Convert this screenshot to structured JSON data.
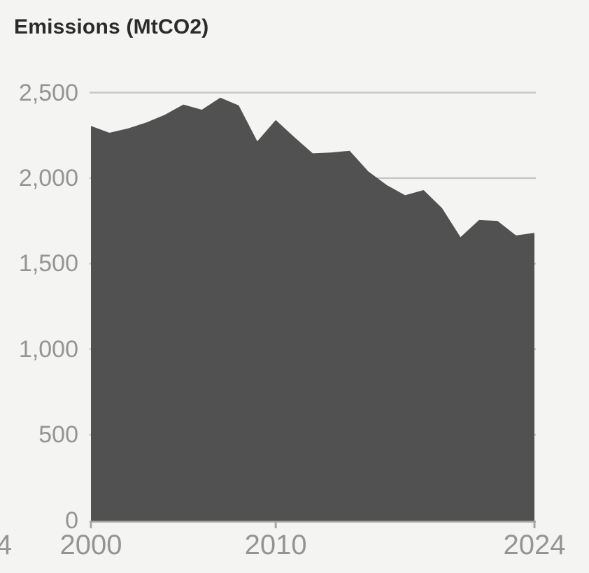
{
  "header": {
    "title": "Emissions (MtCO2)"
  },
  "colors": {
    "background": "#f4f4f2",
    "area_fill": "#515151",
    "gridline": "#c7c7c7",
    "axis": "#a6a6a6",
    "tick_label": "#949494",
    "title_text": "#2b2b2b"
  },
  "chart_data": {
    "type": "area",
    "title": "Emissions (MtCO2)",
    "xlabel": "",
    "ylabel": "Emissions (MtCO2)",
    "x": [
      2000,
      2001,
      2002,
      2003,
      2004,
      2005,
      2006,
      2007,
      2008,
      2009,
      2010,
      2011,
      2012,
      2013,
      2014,
      2015,
      2016,
      2017,
      2018,
      2019,
      2020,
      2021,
      2022,
      2023,
      2024
    ],
    "values": [
      2305,
      2265,
      2290,
      2325,
      2370,
      2430,
      2400,
      2470,
      2425,
      2215,
      2340,
      2240,
      2145,
      2150,
      2160,
      2040,
      1960,
      1900,
      1930,
      1825,
      1655,
      1755,
      1750,
      1665,
      1680
    ],
    "xlim": [
      2000,
      2024
    ],
    "ylim": [
      0,
      2500
    ],
    "grid": "horizontal",
    "legend": "none",
    "y_axis": {
      "tick_values": [
        0,
        500,
        1000,
        1500,
        2000,
        2500
      ],
      "tick_labels": [
        "0",
        "500",
        "1,000",
        "1,500",
        "2,000",
        "2,500"
      ]
    },
    "x_axis": {
      "tick_years": [
        2000,
        2010,
        2024
      ],
      "tick_labels": [
        "2000",
        "2010",
        "2024"
      ],
      "clipped_left_label": "4"
    },
    "gridline_values": [
      500,
      1000,
      1500,
      2000,
      2500
    ]
  }
}
